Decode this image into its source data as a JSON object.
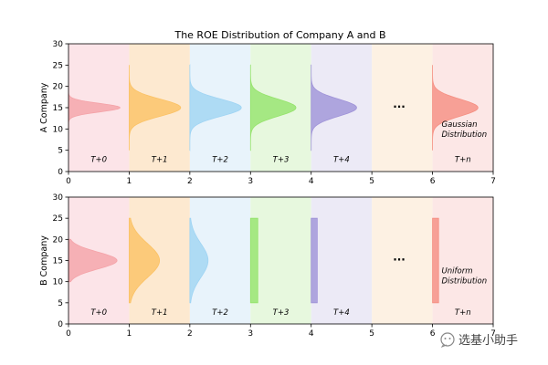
{
  "chart_data": {
    "type": "area",
    "title": "The ROE Distribution of Company A and B",
    "period_labels": [
      "T+0",
      "T+1",
      "T+2",
      "T+3",
      "T+4",
      "...",
      "T+n"
    ],
    "band_colors": [
      "#fce4e8",
      "#fde9d0",
      "#e8f3fb",
      "#e7f8de",
      "#eceaf6",
      "#fdf1e3",
      "#fce7e6"
    ],
    "xlim": [
      0,
      7
    ],
    "xticks": [
      "0",
      "1",
      "2",
      "3",
      "4",
      "5",
      "6",
      "7"
    ],
    "ylim": [
      0,
      30
    ],
    "yticks": [
      "0",
      "5",
      "10",
      "15",
      "20",
      "25",
      "30"
    ],
    "panels": [
      {
        "ylabel": "A Company",
        "distribution_note": [
          "Gaussian",
          "Distribution"
        ],
        "kind": "gaussian",
        "distributions": [
          {
            "period": 0,
            "base_x": 0,
            "mean": 15,
            "range": [
              10,
              20
            ],
            "height": 0.85,
            "color": "#f4a3a8"
          },
          {
            "period": 1,
            "base_x": 1,
            "mean": 15,
            "range": [
              5,
              25
            ],
            "height": 0.85,
            "color": "#fbc264"
          },
          {
            "period": 2,
            "base_x": 2,
            "mean": 15,
            "range": [
              5,
              25
            ],
            "height": 0.85,
            "color": "#9fd4f3"
          },
          {
            "period": 3,
            "base_x": 3,
            "mean": 15,
            "range": [
              5,
              25
            ],
            "height": 0.75,
            "color": "#95e36b"
          },
          {
            "period": 4,
            "base_x": 4,
            "mean": 15,
            "range": [
              5,
              25
            ],
            "height": 0.75,
            "color": "#9f93d8"
          },
          {
            "period": 6,
            "base_x": 6,
            "mean": 15,
            "range": [
              5,
              25
            ],
            "height": 0.75,
            "color": "#f58f82"
          }
        ]
      },
      {
        "ylabel": "B Company",
        "distribution_note": [
          "Uniform",
          "Distribution"
        ],
        "kind": "mixed",
        "distributions": [
          {
            "period": 0,
            "base_x": 0,
            "shape": "gaussian",
            "mean": 15,
            "range": [
              10,
              20
            ],
            "height": 0.8,
            "color": "#f4a3a8"
          },
          {
            "period": 1,
            "base_x": 1,
            "shape": "gaussian",
            "mean": 15,
            "range": [
              5,
              25
            ],
            "height": 0.5,
            "color": "#fbc264"
          },
          {
            "period": 2,
            "base_x": 2,
            "shape": "gaussian",
            "mean": 15,
            "range": [
              5,
              25
            ],
            "height": 0.3,
            "color": "#9fd4f3"
          },
          {
            "period": 3,
            "base_x": 3,
            "shape": "uniform",
            "range": [
              5,
              25
            ],
            "height": 0.12,
            "color": "#95e36b"
          },
          {
            "period": 4,
            "base_x": 4,
            "shape": "uniform",
            "range": [
              5,
              25
            ],
            "height": 0.1,
            "color": "#9f93d8"
          },
          {
            "period": 6,
            "base_x": 6,
            "shape": "uniform",
            "range": [
              5,
              25
            ],
            "height": 0.1,
            "color": "#f58f82"
          }
        ]
      }
    ]
  },
  "watermark": {
    "text": "选基小助手",
    "icon": "wechat-icon"
  }
}
